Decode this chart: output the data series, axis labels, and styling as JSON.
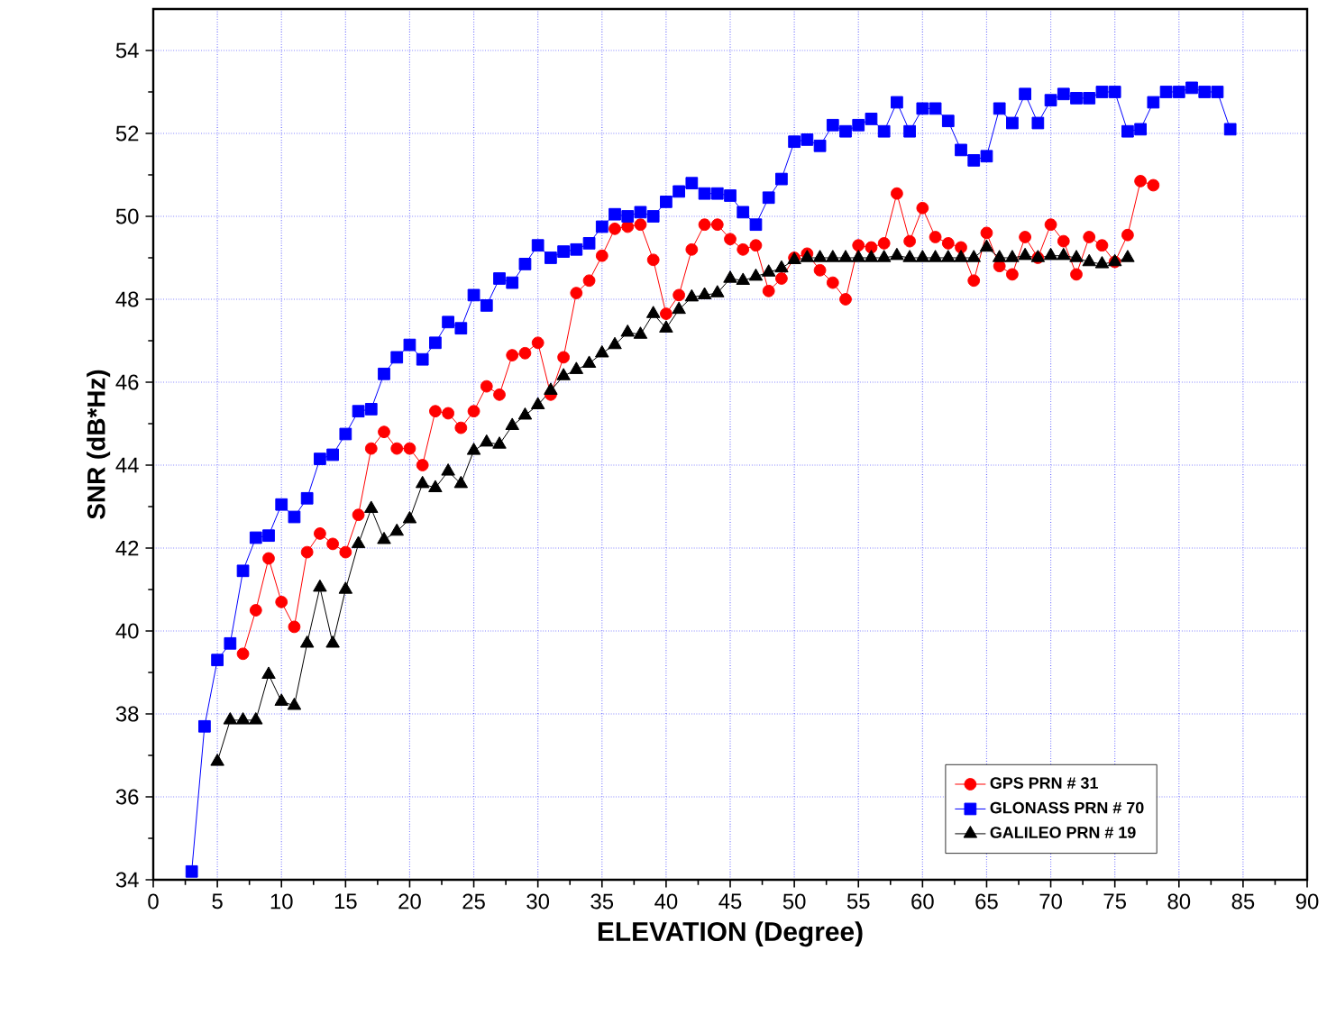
{
  "chart_data": {
    "type": "line",
    "xlabel": "ELEVATION (Degree)",
    "ylabel": "SNR (dB*Hz)",
    "xlim": [
      0,
      90
    ],
    "xticks": [
      0,
      5,
      10,
      15,
      20,
      25,
      30,
      35,
      40,
      45,
      50,
      55,
      60,
      65,
      70,
      75,
      80,
      85,
      90
    ],
    "ylim": [
      34,
      55
    ],
    "yticks": [
      34,
      36,
      38,
      40,
      42,
      44,
      46,
      48,
      50,
      52,
      54
    ],
    "grid": true,
    "legend": "bottom right",
    "line_style": "solid",
    "series": [
      {
        "name": "GPS PRN # 31",
        "color": "#ff0000",
        "marker": "circle",
        "x": [
          7,
          8,
          9,
          10,
          11,
          12,
          13,
          14,
          15,
          16,
          17,
          18,
          19,
          20,
          21,
          22,
          23,
          24,
          25,
          26,
          27,
          28,
          29,
          30,
          31,
          32,
          33,
          34,
          35,
          36,
          37,
          38,
          39,
          40,
          41,
          42,
          43,
          44,
          45,
          46,
          47,
          48,
          49,
          50,
          51,
          52,
          53,
          54,
          55,
          56,
          57,
          58,
          59,
          60,
          61,
          62,
          63,
          64,
          65,
          66,
          67,
          68,
          69,
          70,
          71,
          72,
          73,
          74,
          75,
          76,
          77,
          78
        ],
        "values": [
          39.45,
          40.5,
          41.75,
          40.7,
          40.1,
          41.9,
          42.35,
          42.1,
          41.9,
          42.8,
          44.4,
          44.8,
          44.4,
          44.4,
          44.0,
          45.3,
          45.25,
          44.9,
          45.3,
          45.9,
          45.7,
          46.65,
          46.7,
          46.95,
          45.7,
          46.6,
          48.15,
          48.45,
          49.05,
          49.7,
          49.75,
          49.8,
          48.95,
          47.65,
          48.1,
          49.2,
          49.8,
          49.8,
          49.45,
          49.2,
          49.3,
          48.2,
          48.5,
          49.0,
          49.1,
          48.7,
          48.4,
          48.0,
          49.3,
          49.25,
          49.35,
          50.55,
          49.4,
          50.2,
          49.5,
          49.35,
          49.25,
          48.45,
          49.6,
          48.8,
          48.6,
          49.5,
          49.0,
          49.8,
          49.4,
          48.6,
          49.5,
          49.3,
          48.9,
          49.55,
          50.85,
          50.75
        ]
      },
      {
        "name": "GLONASS PRN # 70",
        "color": "#0000ff",
        "marker": "square",
        "x": [
          3,
          4,
          5,
          6,
          7,
          8,
          9,
          10,
          11,
          12,
          13,
          14,
          15,
          16,
          17,
          18,
          19,
          20,
          21,
          22,
          23,
          24,
          25,
          26,
          27,
          28,
          29,
          30,
          31,
          32,
          33,
          34,
          35,
          36,
          37,
          38,
          39,
          40,
          41,
          42,
          43,
          44,
          45,
          46,
          47,
          48,
          49,
          50,
          51,
          52,
          53,
          54,
          55,
          56,
          57,
          58,
          59,
          60,
          61,
          62,
          63,
          64,
          65,
          66,
          67,
          68,
          69,
          70,
          71,
          72,
          73,
          74,
          75,
          76,
          77,
          78,
          79,
          80,
          81,
          82,
          83,
          84
        ],
        "values": [
          34.2,
          37.7,
          39.3,
          39.7,
          41.45,
          42.25,
          42.3,
          43.05,
          42.75,
          43.2,
          44.15,
          44.25,
          44.75,
          45.3,
          45.35,
          46.2,
          46.6,
          46.9,
          46.55,
          46.95,
          47.45,
          47.3,
          48.1,
          47.85,
          48.5,
          48.4,
          48.85,
          49.3,
          49.0,
          49.15,
          49.2,
          49.35,
          49.75,
          50.05,
          50.0,
          50.1,
          50.0,
          50.35,
          50.6,
          50.8,
          50.55,
          50.55,
          50.5,
          50.1,
          49.8,
          50.45,
          50.9,
          51.8,
          51.85,
          51.7,
          52.2,
          52.05,
          52.2,
          52.35,
          52.05,
          52.75,
          52.05,
          52.6,
          52.6,
          52.3,
          51.6,
          51.35,
          51.45,
          52.6,
          52.25,
          52.95,
          52.25,
          52.8,
          52.95,
          52.85,
          52.85,
          53.0,
          53.0,
          52.05,
          52.1,
          52.75,
          53.0,
          53.0,
          53.1,
          53.0,
          53.0,
          52.1
        ]
      },
      {
        "name": "GALILEO PRN # 19",
        "color": "#000000",
        "marker": "triangle",
        "x": [
          5,
          6,
          7,
          8,
          9,
          10,
          11,
          12,
          13,
          14,
          15,
          16,
          17,
          18,
          19,
          20,
          21,
          22,
          23,
          24,
          25,
          26,
          27,
          28,
          29,
          30,
          31,
          32,
          33,
          34,
          35,
          36,
          37,
          38,
          39,
          40,
          41,
          42,
          43,
          44,
          45,
          46,
          47,
          48,
          49,
          50,
          51,
          52,
          53,
          54,
          55,
          56,
          57,
          58,
          59,
          60,
          61,
          62,
          63,
          64,
          65,
          66,
          67,
          68,
          69,
          70,
          71,
          72,
          73,
          74,
          75,
          76
        ],
        "values": [
          36.85,
          37.85,
          37.85,
          37.85,
          38.95,
          38.3,
          38.2,
          39.7,
          41.05,
          39.7,
          41.0,
          42.1,
          42.95,
          42.2,
          42.4,
          42.7,
          43.55,
          43.45,
          43.85,
          43.55,
          44.35,
          44.55,
          44.5,
          44.95,
          45.2,
          45.45,
          45.8,
          46.15,
          46.3,
          46.45,
          46.7,
          46.9,
          47.2,
          47.15,
          47.65,
          47.3,
          47.75,
          48.05,
          48.1,
          48.15,
          48.5,
          48.45,
          48.55,
          48.65,
          48.75,
          48.95,
          49.0,
          49.0,
          49.0,
          49.0,
          49.0,
          49.0,
          49.0,
          49.05,
          49.0,
          49.0,
          49.0,
          49.0,
          49.0,
          49.0,
          49.25,
          49.0,
          49.0,
          49.05,
          49.0,
          49.05,
          49.05,
          49.0,
          48.9,
          48.85,
          48.9,
          49.0
        ]
      }
    ]
  }
}
